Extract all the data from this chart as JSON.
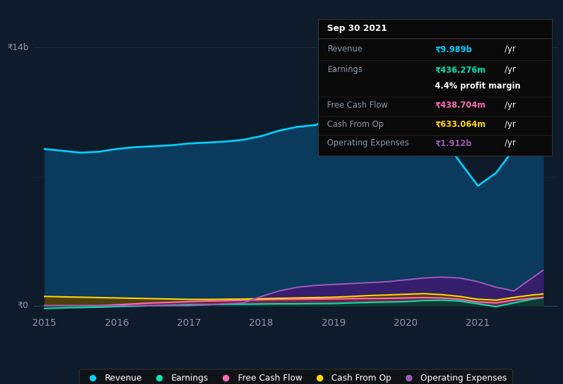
{
  "background_color": "#0d1b2a",
  "plot_bg_color": "#0d1b2a",
  "years": [
    2015.0,
    2015.25,
    2015.5,
    2015.75,
    2016.0,
    2016.25,
    2016.5,
    2016.75,
    2017.0,
    2017.25,
    2017.5,
    2017.75,
    2018.0,
    2018.25,
    2018.5,
    2018.75,
    2019.0,
    2019.25,
    2019.5,
    2019.75,
    2020.0,
    2020.25,
    2020.5,
    2020.75,
    2021.0,
    2021.25,
    2021.5,
    2021.75,
    2021.9
  ],
  "revenue": [
    8.5,
    8.4,
    8.3,
    8.35,
    8.5,
    8.6,
    8.65,
    8.7,
    8.8,
    8.85,
    8.9,
    9.0,
    9.2,
    9.5,
    9.7,
    9.8,
    10.2,
    10.8,
    11.0,
    11.2,
    11.3,
    10.5,
    9.2,
    7.8,
    6.5,
    7.2,
    8.5,
    9.5,
    9.989
  ],
  "earnings": [
    -0.15,
    -0.12,
    -0.1,
    -0.08,
    -0.05,
    -0.03,
    0.0,
    0.02,
    0.05,
    0.06,
    0.07,
    0.08,
    0.09,
    0.1,
    0.1,
    0.11,
    0.12,
    0.15,
    0.18,
    0.2,
    0.22,
    0.28,
    0.3,
    0.25,
    0.1,
    -0.05,
    0.15,
    0.35,
    0.436
  ],
  "free_cash_flow": [
    0.0,
    0.0,
    0.0,
    0.0,
    0.05,
    0.1,
    0.15,
    0.18,
    0.22,
    0.25,
    0.27,
    0.3,
    0.32,
    0.34,
    0.35,
    0.36,
    0.37,
    0.38,
    0.39,
    0.4,
    0.42,
    0.44,
    0.42,
    0.35,
    0.2,
    0.15,
    0.3,
    0.4,
    0.439
  ],
  "cash_from_op": [
    0.5,
    0.48,
    0.46,
    0.44,
    0.42,
    0.4,
    0.38,
    0.36,
    0.34,
    0.34,
    0.35,
    0.36,
    0.38,
    0.4,
    0.42,
    0.44,
    0.46,
    0.5,
    0.55,
    0.58,
    0.62,
    0.65,
    0.6,
    0.5,
    0.35,
    0.3,
    0.45,
    0.58,
    0.633
  ],
  "op_expenses": [
    0.0,
    0.0,
    0.0,
    0.0,
    0.0,
    0.0,
    0.0,
    0.0,
    0.0,
    0.05,
    0.1,
    0.15,
    0.5,
    0.8,
    1.0,
    1.1,
    1.15,
    1.2,
    1.25,
    1.3,
    1.4,
    1.5,
    1.55,
    1.5,
    1.3,
    1.0,
    0.8,
    1.5,
    1.912
  ],
  "revenue_color": "#00cfff",
  "earnings_color": "#00e5b0",
  "free_cash_flow_color": "#ff6eb4",
  "cash_from_op_color": "#ffd700",
  "op_expenses_color": "#9b59b6",
  "fill_revenue_color": "#0a3a5c",
  "fill_op_color": "#3d1a6e",
  "fill_cop_color": "#5a4000",
  "fill_fcf_color": "#7a2050",
  "fill_earn_color": "#003d30",
  "ylabel_14b": "₹14b",
  "ylabel_0": "₹0",
  "x_ticks": [
    2015,
    2016,
    2017,
    2018,
    2019,
    2020,
    2021
  ],
  "ylim": [
    -0.5,
    14.5
  ],
  "xlim": [
    2014.85,
    2022.1
  ],
  "tooltip": {
    "date": "Sep 30 2021",
    "revenue_label": "Revenue",
    "revenue_value": "₹9.989b",
    "revenue_unit": "/yr",
    "earnings_label": "Earnings",
    "earnings_value": "₹436.276m",
    "earnings_unit": "/yr",
    "profit_margin": "4.4% profit margin",
    "fcf_label": "Free Cash Flow",
    "fcf_value": "₹438.704m",
    "fcf_unit": "/yr",
    "cop_label": "Cash From Op",
    "cop_value": "₹633.064m",
    "cop_unit": "/yr",
    "opex_label": "Operating Expenses",
    "opex_value": "₹1.912b",
    "opex_unit": "/yr"
  },
  "legend_items": [
    "Revenue",
    "Earnings",
    "Free Cash Flow",
    "Cash From Op",
    "Operating Expenses"
  ],
  "legend_colors": [
    "#00cfff",
    "#00e5b0",
    "#ff6eb4",
    "#ffd700",
    "#9b59b6"
  ]
}
